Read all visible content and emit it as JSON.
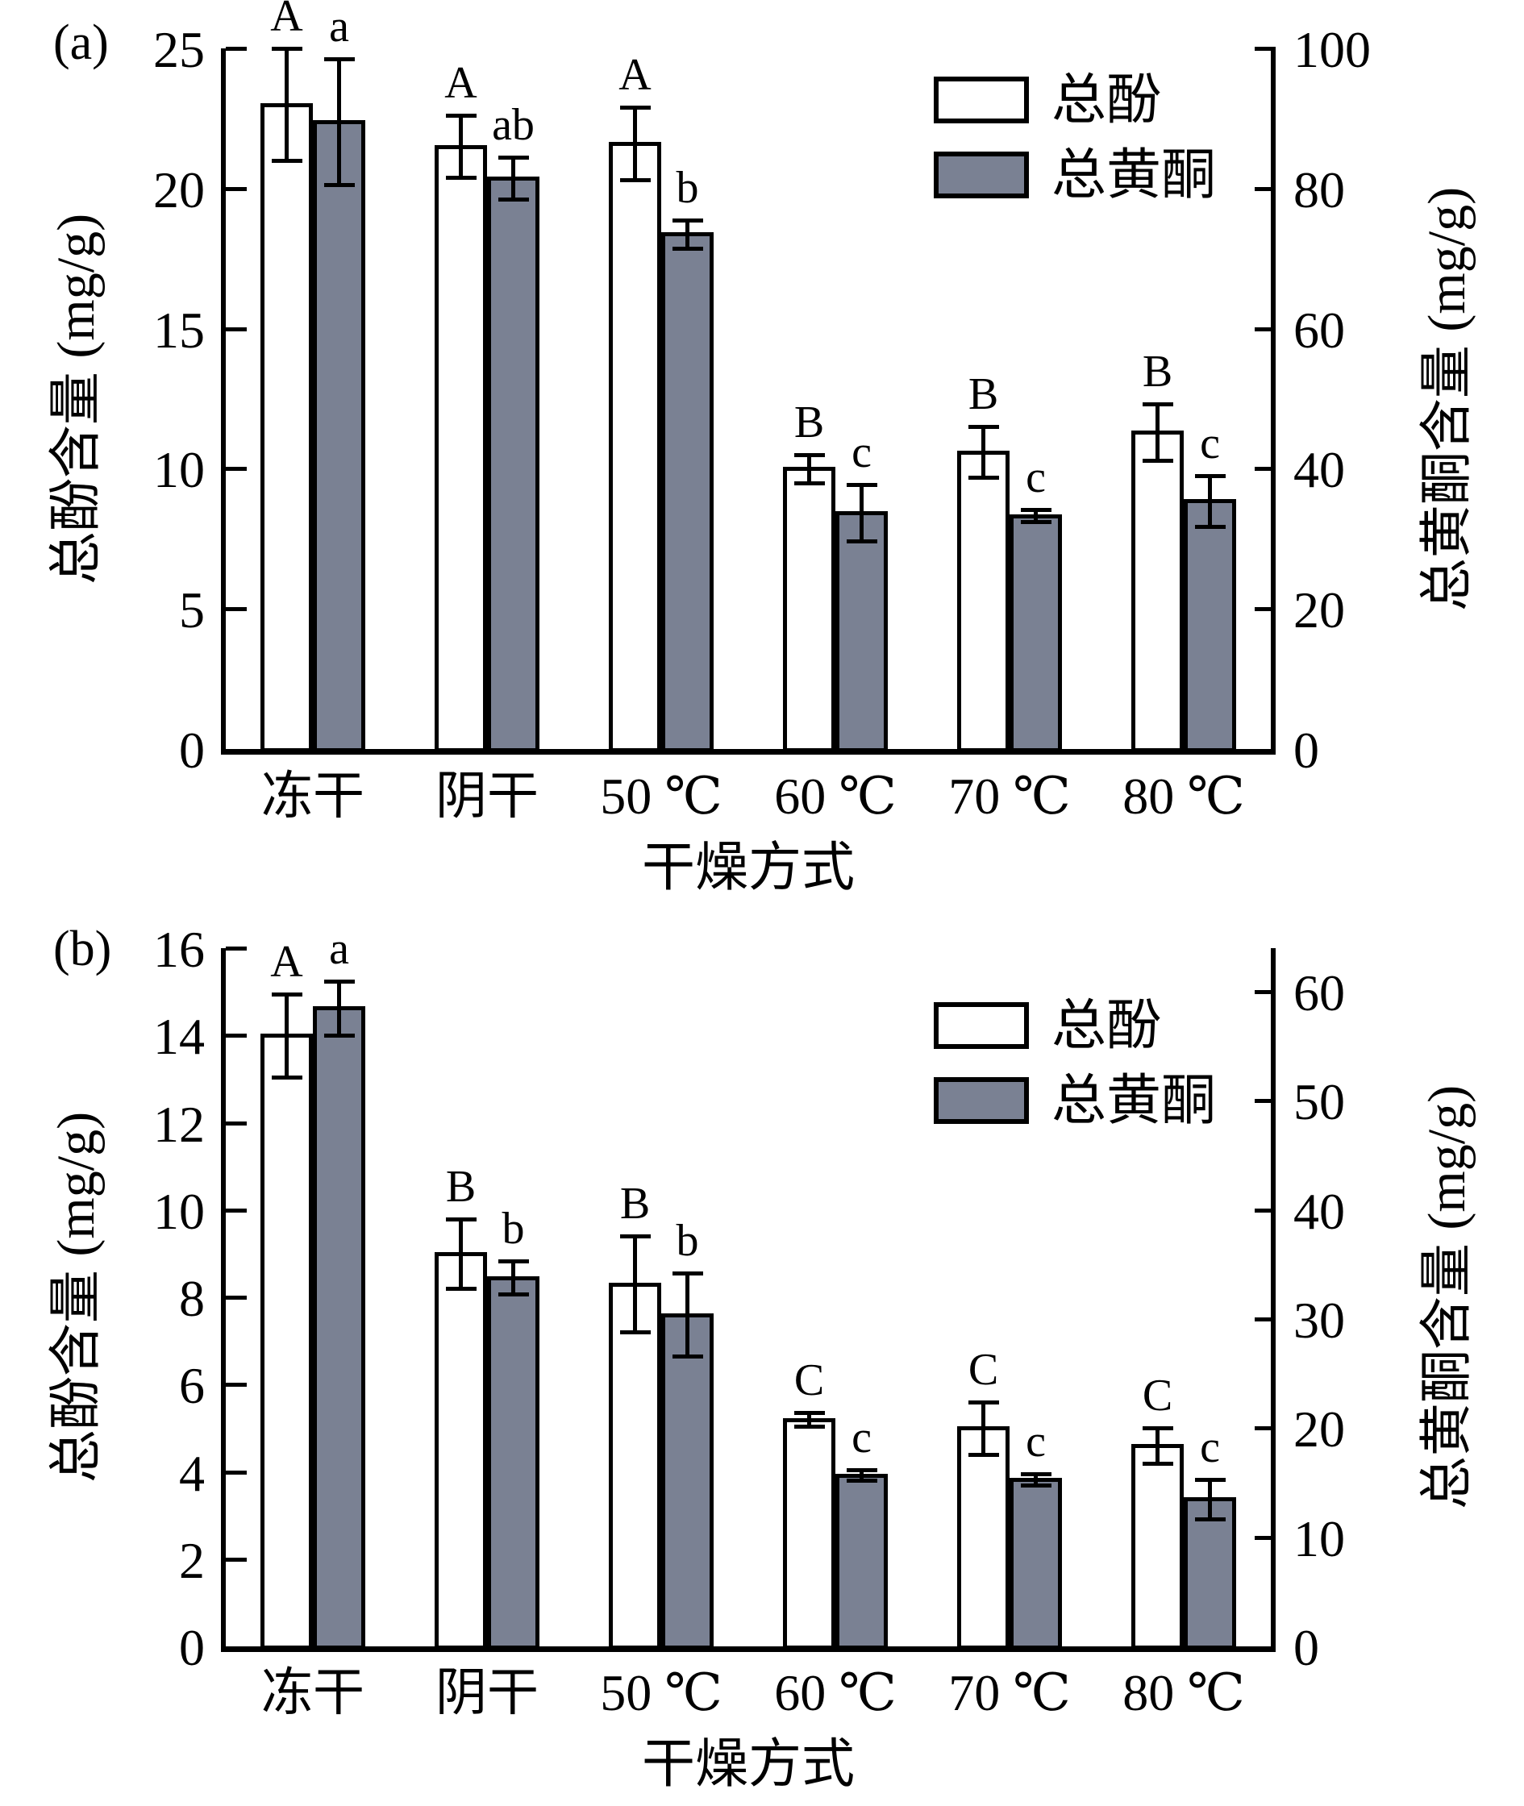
{
  "figure": {
    "background": "#ffffff",
    "bar_outline_color": "#000000",
    "phenol_fill": "#ffffff",
    "flavone_fill": "#7a8193"
  },
  "legend": {
    "items": [
      {
        "label": "总酚",
        "fill": "#ffffff"
      },
      {
        "label": "总黄酮",
        "fill": "#7a8193"
      }
    ]
  },
  "chart_data": [
    {
      "panel_tag": "(a)",
      "type": "bar",
      "grid": false,
      "legend_position": "upper-right-inside",
      "categories": [
        "冻干",
        "阴干",
        "50 ℃",
        "60 ℃",
        "70 ℃",
        "80 ℃"
      ],
      "xlabel": "干燥方式",
      "left_axis": {
        "label": "总酚含量 (mg/g)",
        "lim": [
          0,
          25
        ],
        "ticks": [
          0,
          5,
          10,
          15,
          20,
          25
        ]
      },
      "right_axis": {
        "label": "总黄酮含量 (mg/g)",
        "lim": [
          0,
          100
        ],
        "ticks": [
          0,
          20,
          40,
          60,
          80,
          100
        ]
      },
      "series": [
        {
          "name": "总酚",
          "axis": "left",
          "fill": "#ffffff",
          "values": [
            23.0,
            21.5,
            21.6,
            10.0,
            10.6,
            11.3
          ],
          "errors": [
            2.0,
            1.1,
            1.3,
            0.5,
            0.9,
            1.0
          ],
          "letters": [
            "A",
            "A",
            "A",
            "B",
            "B",
            "B"
          ]
        },
        {
          "name": "总黄酮",
          "axis": "right",
          "fill": "#7a8193",
          "values": [
            89.5,
            81.5,
            73.5,
            33.7,
            33.3,
            35.4
          ],
          "errors": [
            9.0,
            3.0,
            2.0,
            4.0,
            0.9,
            3.6
          ],
          "letters": [
            "a",
            "ab",
            "b",
            "c",
            "c",
            "c"
          ]
        }
      ]
    },
    {
      "panel_tag": "(b)",
      "type": "bar",
      "grid": false,
      "legend_position": "upper-right-inside",
      "categories": [
        "冻干",
        "阴干",
        "50 ℃",
        "60 ℃",
        "70 ℃",
        "80 ℃"
      ],
      "xlabel": "干燥方式",
      "left_axis": {
        "label": "总酚含量 (mg/g)",
        "lim": [
          0,
          16
        ],
        "ticks": [
          0,
          2,
          4,
          6,
          8,
          10,
          12,
          14,
          16
        ]
      },
      "right_axis": {
        "label": "总黄酮含量 (mg/g)",
        "lim": [
          0,
          64
        ],
        "ticks": [
          0,
          10,
          20,
          30,
          40,
          50,
          60
        ]
      },
      "series": [
        {
          "name": "总酚",
          "axis": "left",
          "fill": "#ffffff",
          "values": [
            14.0,
            9.0,
            8.3,
            5.2,
            5.0,
            4.6
          ],
          "errors": [
            0.95,
            0.8,
            1.1,
            0.15,
            0.6,
            0.4
          ],
          "letters": [
            "A",
            "B",
            "B",
            "C",
            "C",
            "C"
          ]
        },
        {
          "name": "总黄酮",
          "axis": "right",
          "fill": "#7a8193",
          "values": [
            58.5,
            33.8,
            30.4,
            15.7,
            15.3,
            13.5
          ],
          "errors": [
            2.5,
            1.5,
            3.8,
            0.5,
            0.5,
            1.8
          ],
          "letters": [
            "a",
            "b",
            "b",
            "c",
            "c",
            "c"
          ]
        }
      ]
    }
  ]
}
